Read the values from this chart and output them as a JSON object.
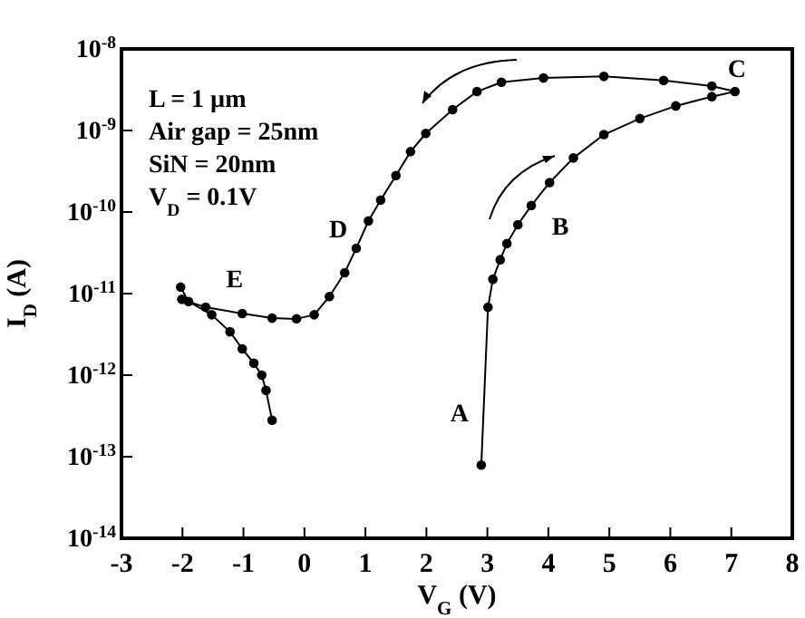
{
  "chart_data": {
    "type": "line",
    "xlabel": "V$_{G}$ (V)",
    "ylabel": "I$_{D}$ (A)",
    "log": "y",
    "marker": "circle",
    "line_style": "solid",
    "xlim": [
      -3,
      8
    ],
    "xticks": [
      -3,
      -2,
      -1,
      0,
      1,
      2,
      3,
      4,
      5,
      6,
      7,
      8
    ],
    "ylim": [
      1e-14,
      1e-08
    ],
    "yticks": [
      {
        "value": 1e-14,
        "label": "10$^{-14}$"
      },
      {
        "value": 1e-13,
        "label": "10$^{-13}$"
      },
      {
        "value": 1e-12,
        "label": "10$^{-12}$"
      },
      {
        "value": 1e-11,
        "label": "10$^{-11}$"
      },
      {
        "value": 1e-10,
        "label": "10$^{-10}$"
      },
      {
        "value": 1e-09,
        "label": "10$^{-9}$"
      },
      {
        "value": 1e-08,
        "label": "10$^{-8}$"
      }
    ],
    "series": [
      {
        "color": "#000000",
        "x": [
          2.9,
          3.01,
          3.09,
          3.21,
          3.32,
          3.5,
          3.72,
          4.02,
          4.41,
          4.91,
          5.5,
          6.09,
          6.68,
          7.06,
          6.68,
          5.89,
          4.91,
          3.92,
          3.23,
          2.83,
          2.43,
          1.99,
          1.74,
          1.5,
          1.25,
          1.05,
          0.85,
          0.66,
          0.41,
          0.16,
          -0.13,
          -0.53,
          -1.02,
          -1.62,
          -2.01
        ],
        "values": [
          7.9e-14,
          6.8e-12,
          1.5e-11,
          2.6e-11,
          4.1e-11,
          7e-11,
          1.2e-10,
          2.3e-10,
          4.6e-10,
          8.9e-10,
          1.4e-09,
          2e-09,
          2.6e-09,
          3e-09,
          3.5e-09,
          4.1e-09,
          4.6e-09,
          4.4e-09,
          3.9e-09,
          3e-09,
          1.8e-09,
          9.2e-10,
          5.5e-10,
          2.8e-10,
          1.4e-10,
          7.8e-11,
          3.6e-11,
          1.8e-11,
          9.2e-12,
          5.5e-12,
          4.9e-12,
          5e-12,
          5.7e-12,
          6.8e-12,
          8.5e-12
        ]
      },
      {
        "color": "#000000",
        "x": [
          -2.03,
          -1.9,
          -1.52,
          -1.22,
          -1.02,
          -0.83,
          -0.7,
          -0.63,
          -0.53
        ],
        "values": [
          1.2e-11,
          8e-12,
          5.5e-12,
          3.4e-12,
          2.1e-12,
          1.4e-12,
          1e-12,
          6.5e-13,
          2.8e-13
        ]
      }
    ],
    "annotations": [
      {
        "text": "A",
        "x": 2.9,
        "y": 7.9e-14
      },
      {
        "text": "B",
        "x": 3.72,
        "y": 1.2e-10
      },
      {
        "text": "C",
        "x": 7.06,
        "y": 3e-09
      },
      {
        "text": "D",
        "x": 0.85,
        "y": 3.6e-11
      },
      {
        "text": "E",
        "x": -1.62,
        "y": 6.8e-12
      },
      "L = 1 µm",
      "Air gap = 25nm",
      "SiN = 20nm",
      "V$_{D}$ = 0.1V"
    ]
  }
}
